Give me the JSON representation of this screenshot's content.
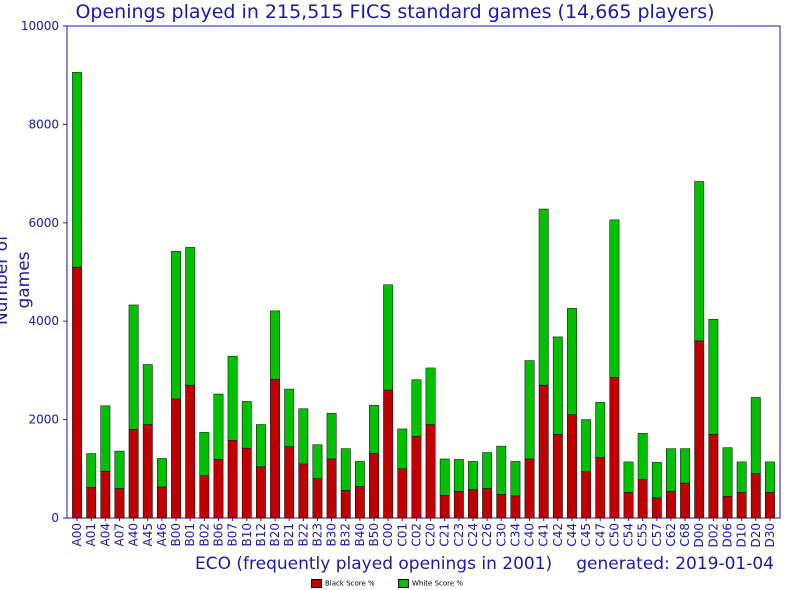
{
  "chart_data": {
    "type": "bar",
    "stacked": true,
    "title": "Openings played in 215,515 FICS standard games (14,665 players)",
    "xlabel": "ECO (frequently played openings in 2001)",
    "ylabel": "Number of games",
    "footer": "generated: 2019-01-04",
    "ylim": [
      0,
      10000
    ],
    "yticks": [
      0,
      2000,
      4000,
      6000,
      8000,
      10000
    ],
    "grid": false,
    "legend_position": "bottom-center",
    "categories": [
      "A00",
      "A01",
      "A04",
      "A07",
      "A40",
      "A45",
      "A46",
      "B00",
      "B01",
      "B02",
      "B06",
      "B07",
      "B10",
      "B12",
      "B20",
      "B21",
      "B22",
      "B23",
      "B30",
      "B32",
      "B40",
      "B50",
      "C00",
      "C01",
      "C02",
      "C20",
      "C21",
      "C23",
      "C24",
      "C26",
      "C30",
      "C34",
      "C40",
      "C41",
      "C42",
      "C44",
      "C45",
      "C47",
      "C50",
      "C54",
      "C55",
      "C57",
      "C62",
      "C68",
      "D00",
      "D02",
      "D06",
      "D10",
      "D20",
      "D30"
    ],
    "series": [
      {
        "name": "Black Score %",
        "color": "#c00000",
        "values": [
          5100,
          620,
          950,
          600,
          1800,
          1900,
          630,
          2420,
          2700,
          860,
          1190,
          1580,
          1420,
          1040,
          2820,
          1450,
          1100,
          800,
          1200,
          560,
          640,
          1310,
          2600,
          1000,
          1660,
          1900,
          460,
          540,
          580,
          600,
          480,
          450,
          1200,
          2700,
          1700,
          2100,
          940,
          1230,
          2860,
          520,
          780,
          410,
          540,
          710,
          3600,
          1700,
          440,
          520,
          900,
          520
        ]
      },
      {
        "name": "White Score %",
        "color": "#00c000",
        "values": [
          3960,
          690,
          1330,
          760,
          2530,
          1220,
          580,
          3000,
          2800,
          880,
          1330,
          1710,
          950,
          860,
          1390,
          1170,
          1120,
          690,
          930,
          850,
          510,
          980,
          2140,
          810,
          1150,
          1150,
          740,
          650,
          570,
          730,
          980,
          700,
          2000,
          3580,
          1980,
          2160,
          1060,
          1120,
          3200,
          620,
          940,
          720,
          870,
          700,
          3240,
          2340,
          990,
          620,
          1550,
          620
        ]
      }
    ]
  }
}
